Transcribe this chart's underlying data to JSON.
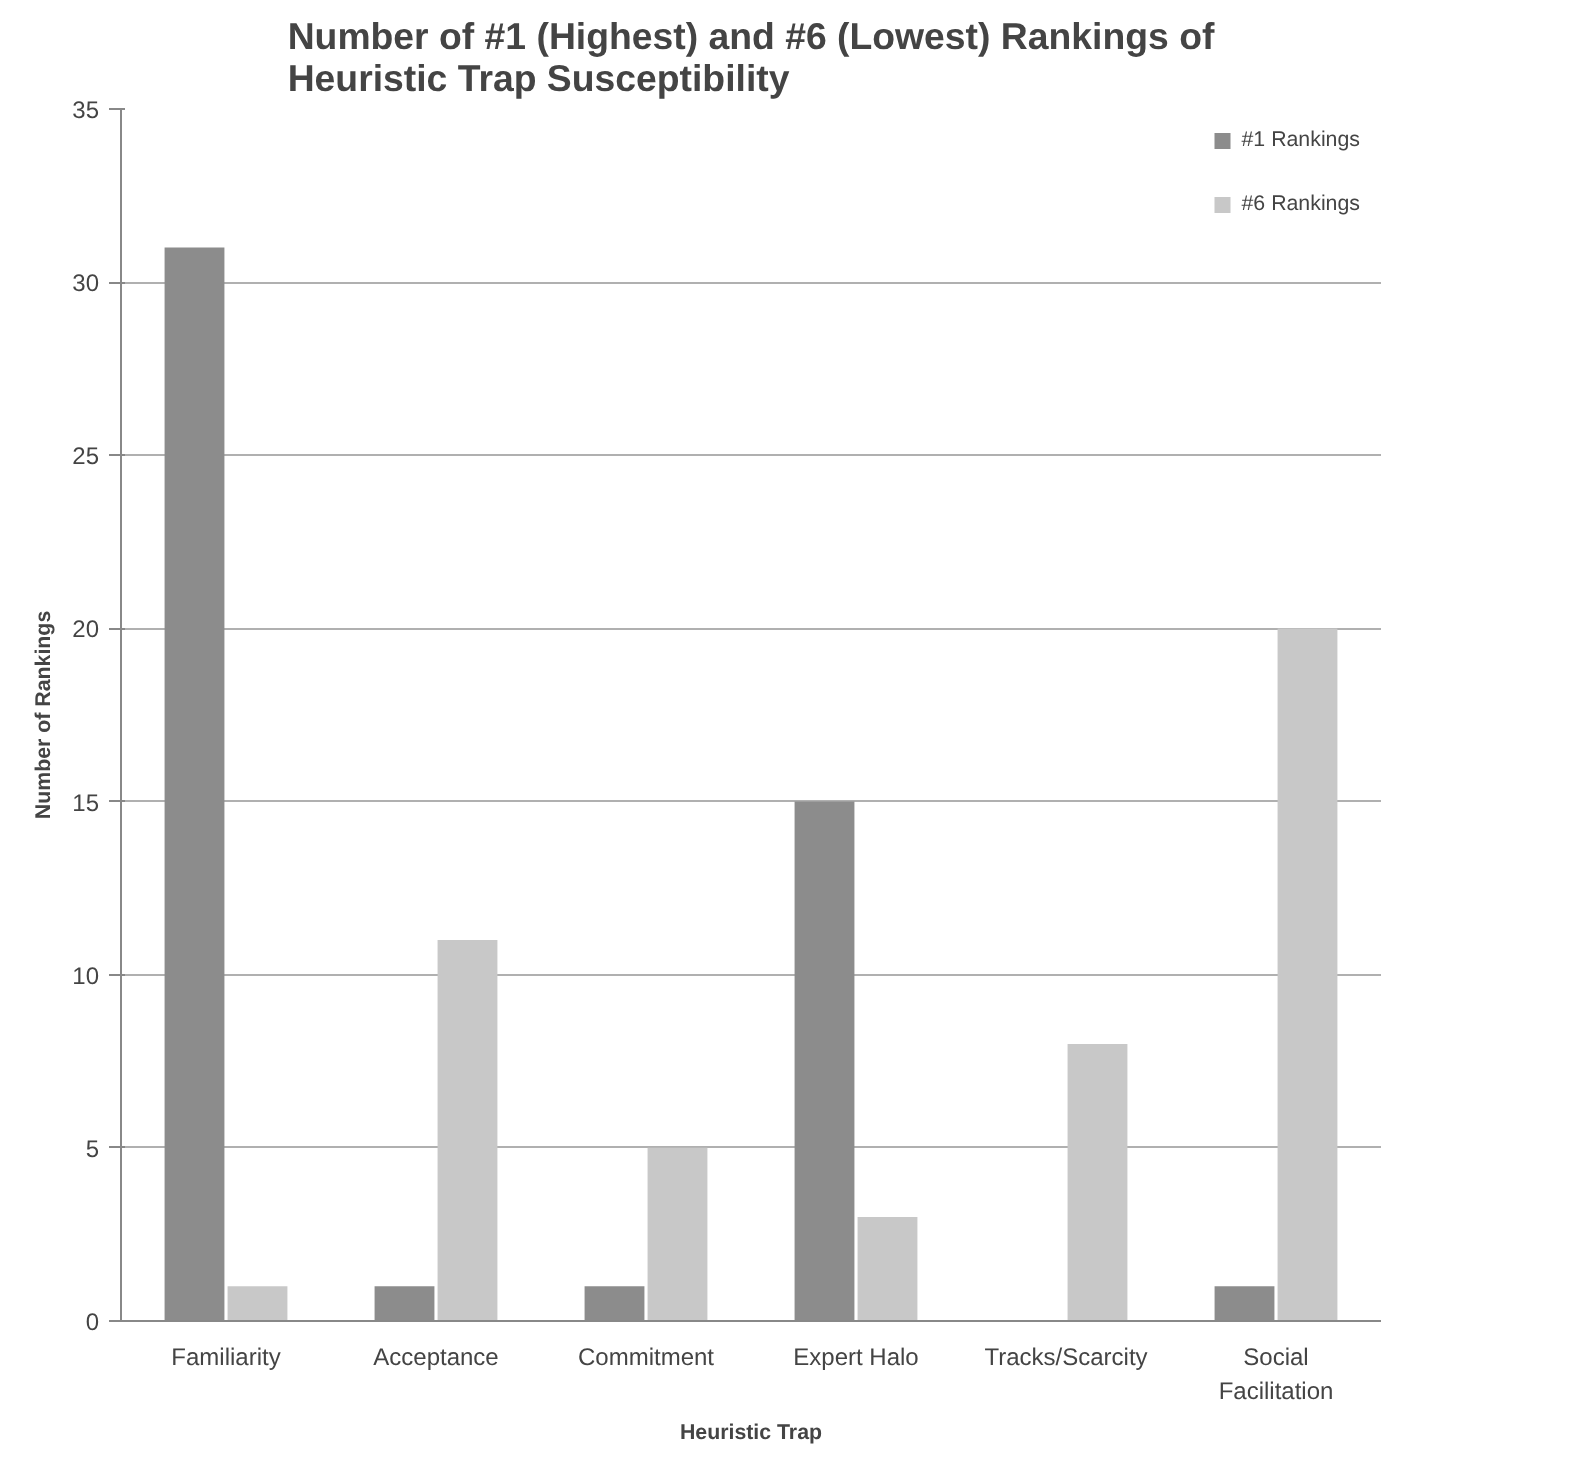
{
  "chart_data": {
    "type": "bar",
    "title": "Number of #1 (Highest) and #6 (Lowest) Rankings of Heuristic Trap Susceptibility",
    "xlabel": "Heuristic Trap",
    "ylabel": "Number of Rankings",
    "categories": [
      "Familiarity",
      "Acceptance",
      "Commitment",
      "Expert Halo",
      "Tracks/Scarcity",
      "Social Facilitation"
    ],
    "series": [
      {
        "name": "#1 Rankings",
        "color": "#8c8c8c",
        "values": [
          31,
          1,
          1,
          15,
          0,
          1
        ]
      },
      {
        "name": "#6 Rankings",
        "color": "#c8c8c8",
        "values": [
          1,
          11,
          5,
          3,
          8,
          20
        ]
      }
    ],
    "ylim": [
      0,
      35
    ],
    "yticks": [
      0,
      5,
      10,
      15,
      20,
      25,
      30,
      35
    ],
    "grid": "y",
    "legend": "top right"
  }
}
